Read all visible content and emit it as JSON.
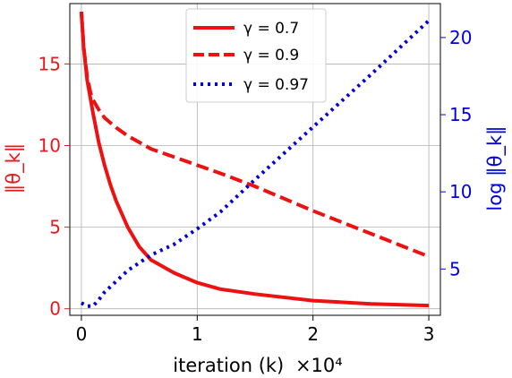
{
  "chart_data": {
    "type": "line",
    "title": "",
    "xlabel": "iteration (k)",
    "x_multiplier": "×10⁴",
    "ylabel_left": "‖θ_k‖",
    "ylabel_right": "log ‖θ_k‖",
    "xlim": [
      -0.1,
      3.1
    ],
    "ylim_left": [
      -0.4,
      18.7
    ],
    "ylim_right": [
      2.0,
      22.2
    ],
    "x_ticks": [
      0,
      1,
      2,
      3
    ],
    "y_ticks_left": [
      0,
      5,
      10,
      15
    ],
    "y_ticks_right": [
      5,
      10,
      15,
      20
    ],
    "grid": true,
    "legend_position": "top-center",
    "colors": {
      "left_axis": "#e41a1c",
      "right_axis": "#0000dd",
      "gamma_07": "#ee1111",
      "gamma_09": "#ee1111",
      "gamma_097": "#0000dd"
    },
    "series": [
      {
        "name": "γ = 0.7",
        "axis": "left",
        "style": "solid",
        "x": [
          0,
          0.02,
          0.05,
          0.08,
          0.1,
          0.15,
          0.2,
          0.25,
          0.3,
          0.4,
          0.5,
          0.6,
          0.8,
          1.0,
          1.2,
          1.5,
          2.0,
          2.5,
          3.0
        ],
        "y": [
          18.2,
          16.0,
          14.0,
          12.8,
          12.0,
          10.2,
          8.8,
          7.6,
          6.6,
          5.0,
          3.8,
          3.0,
          2.2,
          1.6,
          1.2,
          0.9,
          0.5,
          0.3,
          0.2
        ]
      },
      {
        "name": "γ = 0.9",
        "axis": "left",
        "style": "dashed",
        "x": [
          0,
          0.02,
          0.05,
          0.08,
          0.1,
          0.15,
          0.2,
          0.3,
          0.4,
          0.5,
          0.6,
          0.8,
          1.0,
          1.2,
          1.5,
          2.0,
          2.5,
          3.0
        ],
        "y": [
          18.2,
          16.0,
          14.2,
          13.2,
          12.8,
          12.2,
          11.7,
          11.1,
          10.6,
          10.2,
          9.8,
          9.3,
          8.8,
          8.3,
          7.5,
          6.0,
          4.6,
          3.2
        ]
      },
      {
        "name": "γ = 0.97",
        "axis": "right",
        "style": "dotted",
        "x": [
          0,
          0.05,
          0.1,
          0.15,
          0.2,
          0.3,
          0.4,
          0.5,
          0.6,
          0.8,
          1.0,
          1.2,
          1.5,
          2.0,
          2.5,
          3.0
        ],
        "y": [
          2.8,
          2.6,
          2.6,
          3.0,
          3.5,
          4.2,
          4.9,
          5.4,
          5.9,
          6.6,
          7.6,
          8.7,
          10.8,
          14.2,
          17.6,
          21.1
        ]
      }
    ]
  }
}
